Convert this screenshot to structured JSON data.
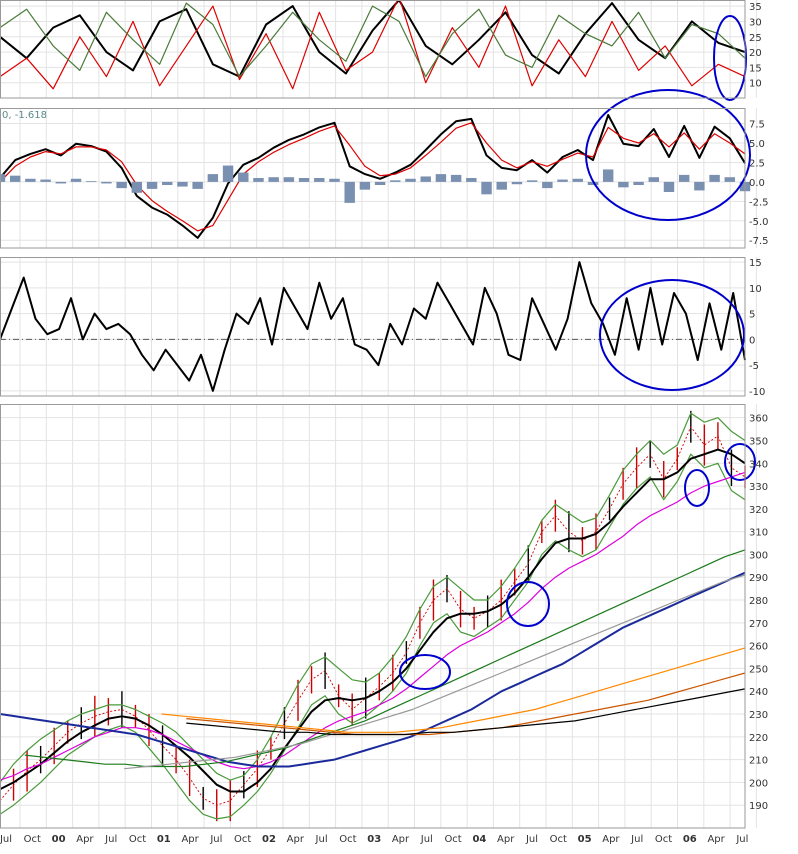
{
  "chart_data": [
    {
      "type": "line",
      "panel": "stochastic-oscillator",
      "grid": true,
      "ylim": [
        5,
        37
      ],
      "y_ticks": [
        "35",
        "30",
        "25",
        "20",
        "15",
        "10"
      ],
      "series": [
        {
          "color": "#000000",
          "values": [
            25,
            18,
            28,
            32,
            20,
            14,
            30,
            34,
            16,
            12,
            29,
            35,
            20,
            13,
            27,
            37,
            22,
            16,
            24,
            33,
            19,
            13,
            26,
            36,
            24,
            18,
            30,
            23,
            20
          ]
        },
        {
          "color": "#dd0000",
          "values": [
            12,
            18,
            8,
            25,
            12,
            30,
            9,
            22,
            35,
            11,
            26,
            8,
            33,
            14,
            20,
            38,
            10,
            28,
            15,
            35,
            9,
            24,
            12,
            30,
            14,
            22,
            9,
            16,
            12
          ]
        },
        {
          "color": "#4a7a3a",
          "values": [
            28,
            34,
            22,
            14,
            33,
            24,
            16,
            36,
            29,
            12,
            22,
            33,
            24,
            17,
            35,
            30,
            12,
            26,
            34,
            19,
            15,
            32,
            26,
            22,
            33,
            18,
            29,
            26,
            18
          ]
        }
      ],
      "annotations": [
        {
          "shape": "ellipse",
          "color": "#0000cc",
          "where": "right edge"
        }
      ]
    },
    {
      "type": "line",
      "panel": "macd",
      "label": "0, -1.618",
      "grid": true,
      "ylim": [
        -8.5,
        9.5
      ],
      "y_ticks": [
        "7.5",
        "5.0",
        "2.5",
        "0.0",
        "-2.5",
        "-5.0",
        "-7.5"
      ],
      "series": [
        {
          "color": "#000000",
          "values": [
            0.5,
            2.8,
            3.6,
            4.2,
            3.4,
            4.9,
            4.6,
            3.9,
            1.8,
            -1.8,
            -3.3,
            -4.2,
            -5.6,
            -7.2,
            -4.6,
            -0.2,
            2.2,
            3.1,
            4.4,
            5.4,
            6.1,
            7.0,
            7.6,
            2.0,
            1.0,
            0.4,
            1.2,
            2.2,
            4.1,
            6.1,
            7.8,
            8.1,
            3.4,
            1.8,
            1.5,
            2.8,
            1.2,
            3.2,
            4.1,
            2.8,
            8.6,
            4.9,
            4.6,
            6.8,
            3.2,
            7.2,
            3.1,
            7.1,
            5.6,
            2.4
          ]
        },
        {
          "color": "#dd0000",
          "values": [
            0.0,
            2.0,
            3.2,
            3.9,
            3.6,
            4.5,
            4.5,
            4.1,
            2.6,
            -0.4,
            -2.4,
            -3.8,
            -5.0,
            -6.3,
            -5.6,
            -2.3,
            1.0,
            2.6,
            3.8,
            4.8,
            5.6,
            6.5,
            7.2,
            4.7,
            2.0,
            0.8,
            1.0,
            1.8,
            3.4,
            5.1,
            6.9,
            7.6,
            5.0,
            2.8,
            1.8,
            2.6,
            2.0,
            2.9,
            3.7,
            3.2,
            7.0,
            5.6,
            5.0,
            6.2,
            4.5,
            6.3,
            4.2,
            6.2,
            5.0,
            3.6
          ]
        },
        {
          "color": "#7a90b0",
          "kind": "histogram",
          "values": [
            1.0,
            0.8,
            0.4,
            0.3,
            -0.2,
            0.4,
            0.1,
            -0.2,
            -0.8,
            -1.4,
            -0.9,
            -0.4,
            -0.6,
            -0.9,
            1.0,
            2.1,
            1.2,
            0.5,
            0.6,
            0.6,
            0.5,
            0.5,
            0.4,
            -2.7,
            -1.0,
            -0.4,
            0.2,
            0.4,
            0.7,
            1.0,
            0.9,
            0.5,
            -1.6,
            -1.0,
            -0.3,
            0.2,
            -0.8,
            0.3,
            0.4,
            -0.4,
            1.6,
            -0.7,
            -0.4,
            0.6,
            -1.3,
            0.9,
            -1.1,
            0.9,
            0.6,
            -1.2
          ]
        }
      ],
      "annotations": [
        {
          "shape": "ellipse",
          "color": "#0000cc",
          "where": "right section"
        }
      ]
    },
    {
      "type": "line",
      "panel": "momentum",
      "grid": true,
      "ylim": [
        -11,
        16
      ],
      "y_ticks": [
        "15",
        "10",
        "5",
        "0",
        "-5",
        "-10"
      ],
      "series": [
        {
          "color": "#000000",
          "values": [
            0,
            6,
            12,
            4,
            1,
            2,
            8,
            0,
            5,
            2,
            3,
            1,
            -3,
            -6,
            -2,
            -5,
            -8,
            -3,
            -10,
            -2,
            5,
            3,
            8,
            -1,
            10,
            6,
            2,
            11,
            4,
            8,
            -1,
            -2,
            -5,
            3,
            -1,
            6,
            4,
            11,
            7,
            3,
            -1,
            10,
            5,
            -3,
            -4,
            8,
            3,
            -2,
            4,
            15,
            7,
            3,
            -3,
            8,
            -2,
            10,
            -1,
            9,
            5,
            -4,
            7,
            -2,
            9,
            -4
          ]
        }
      ],
      "annotations": [
        {
          "shape": "ellipse",
          "color": "#0000cc",
          "where": "right section"
        }
      ]
    },
    {
      "type": "line",
      "panel": "price-with-moving-averages-and-bollinger-bands",
      "grid": true,
      "ylim": [
        180,
        366
      ],
      "y_ticks": [
        "360",
        "350",
        "340",
        "330",
        "320",
        "310",
        "300",
        "290",
        "280",
        "270",
        "260",
        "250",
        "240",
        "230",
        "220",
        "210",
        "200",
        "190"
      ],
      "x_ticks": [
        "Jul",
        "Oct",
        "00",
        "Apr",
        "Jul",
        "Oct",
        "01",
        "Apr",
        "Jul",
        "Oct",
        "02",
        "Apr",
        "Jul",
        "Oct",
        "03",
        "Apr",
        "Jul",
        "Oct",
        "04",
        "Apr",
        "Jul",
        "Oct",
        "05",
        "Apr",
        "Jul",
        "Oct",
        "06",
        "Apr",
        "Jul"
      ],
      "x_tick_years": [
        "00",
        "01",
        "02",
        "03",
        "04",
        "05",
        "06"
      ],
      "series": [
        {
          "color": "#cc0000",
          "kind": "price",
          "values": [
            192,
            199,
            205,
            210,
            216,
            222,
            226,
            229,
            231,
            232,
            229,
            223,
            216,
            210,
            202,
            193,
            190,
            192,
            199,
            206,
            215,
            226,
            236,
            245,
            249,
            238,
            232,
            237,
            242,
            248,
            257,
            270,
            280,
            285,
            276,
            272,
            275,
            280,
            288,
            296,
            310,
            317,
            310,
            306,
            310,
            320,
            331,
            338,
            344,
            333,
            342,
            356,
            348,
            352,
            338,
            334
          ]
        },
        {
          "color": "#4a9a3a",
          "kind": "bb_upper",
          "values": [
            200,
            208,
            214,
            219,
            223,
            227,
            230,
            232,
            234,
            234,
            232,
            229,
            226,
            222,
            216,
            210,
            204,
            201,
            203,
            210,
            220,
            232,
            243,
            252,
            255,
            250,
            245,
            244,
            248,
            255,
            264,
            276,
            286,
            290,
            285,
            280,
            280,
            286,
            294,
            303,
            315,
            322,
            318,
            314,
            316,
            326,
            337,
            344,
            350,
            344,
            348,
            362,
            358,
            360,
            354,
            350
          ]
        },
        {
          "color": "#4a9a3a",
          "kind": "bb_lower",
          "values": [
            186,
            190,
            195,
            200,
            206,
            212,
            216,
            220,
            223,
            225,
            222,
            215,
            208,
            200,
            192,
            186,
            184,
            185,
            190,
            196,
            204,
            214,
            224,
            234,
            238,
            230,
            226,
            229,
            234,
            240,
            248,
            260,
            270,
            274,
            266,
            264,
            268,
            272,
            280,
            288,
            300,
            306,
            302,
            299,
            302,
            312,
            322,
            329,
            334,
            324,
            332,
            344,
            338,
            340,
            328,
            324
          ]
        },
        {
          "color": "#000000",
          "kind": "ma_short",
          "values": [
            197,
            200,
            204,
            208,
            213,
            218,
            222,
            225,
            228,
            229,
            228,
            225,
            221,
            216,
            211,
            205,
            199,
            196,
            196,
            200,
            206,
            215,
            223,
            231,
            236,
            237,
            236,
            237,
            240,
            244,
            250,
            258,
            266,
            272,
            274,
            274,
            275,
            278,
            283,
            290,
            298,
            305,
            307,
            307,
            309,
            314,
            321,
            327,
            333,
            333,
            336,
            342,
            344,
            346,
            344,
            340
          ]
        },
        {
          "color": "#dd00dd",
          "kind": "ma_medium",
          "values": [
            201,
            203,
            206,
            208,
            211,
            214,
            217,
            220,
            222,
            224,
            224,
            223,
            221,
            218,
            215,
            212,
            209,
            207,
            206,
            207,
            209,
            212,
            216,
            220,
            224,
            227,
            229,
            231,
            234,
            237,
            241,
            246,
            251,
            256,
            260,
            263,
            266,
            270,
            274,
            279,
            285,
            290,
            294,
            297,
            300,
            304,
            308,
            313,
            317,
            320,
            323,
            327,
            330,
            332,
            334,
            336
          ]
        },
        {
          "color": "#1a2a9a",
          "kind": "ma_long",
          "values": [
            230,
            229,
            228,
            227,
            226,
            225,
            224,
            223,
            222,
            221,
            219,
            217,
            215,
            213,
            211,
            209,
            208,
            207,
            207,
            207,
            208,
            209,
            210,
            212,
            214,
            216,
            218,
            220,
            223,
            226,
            229,
            232,
            236,
            240,
            243,
            246,
            249,
            252,
            256,
            260,
            264,
            268,
            271,
            274,
            277,
            280,
            283,
            286,
            289,
            292
          ]
        },
        {
          "color": "#1a7a1a",
          "kind": "ma_long2",
          "values": [
            212,
            211,
            210,
            209,
            208,
            208,
            207,
            207,
            207,
            208,
            209,
            211,
            213,
            215,
            218,
            221,
            224,
            227,
            231,
            235,
            239,
            243,
            247,
            251,
            255,
            259,
            263,
            267,
            271,
            275,
            279,
            283,
            287,
            291,
            295,
            299,
            302
          ]
        },
        {
          "color": "#999999",
          "kind": "ma_long3",
          "values": [
            206,
            207,
            208,
            209,
            210,
            211,
            213,
            215,
            217,
            220,
            223,
            226,
            229,
            232,
            236,
            240,
            244,
            248,
            252,
            256,
            260,
            264,
            268,
            272,
            276,
            280,
            284,
            288,
            291
          ]
        },
        {
          "color": "#ff8800",
          "kind": "ma_long4",
          "values": [
            230,
            229,
            228,
            227,
            226,
            225,
            224,
            223,
            222,
            222,
            222,
            223,
            224,
            226,
            228,
            230,
            232,
            235,
            238,
            241,
            244,
            247,
            250,
            253,
            256,
            259
          ]
        },
        {
          "color": "#cc5500",
          "kind": "ma_long5",
          "values": [
            228,
            227,
            226,
            225,
            224,
            223,
            222,
            221,
            221,
            221,
            221,
            222,
            223,
            224,
            226,
            228,
            230,
            232,
            234,
            236,
            239,
            242,
            245,
            248
          ]
        },
        {
          "color": "#000000",
          "kind": "ma_long6",
          "values": [
            226,
            225,
            224,
            223,
            222,
            222,
            221,
            221,
            221,
            221,
            222,
            222,
            223,
            224,
            225,
            226,
            227,
            229,
            231,
            233,
            235,
            237,
            239,
            241
          ]
        }
      ],
      "annotations": [
        {
          "shape": "ellipse",
          "color": "#0000cc",
          "where": "mid 2003"
        },
        {
          "shape": "ellipse",
          "color": "#0000cc",
          "where": "mid 2004"
        },
        {
          "shape": "ellipse",
          "color": "#0000cc",
          "where": "early 2006"
        },
        {
          "shape": "ellipse",
          "color": "#0000cc",
          "where": "right edge"
        }
      ]
    }
  ]
}
